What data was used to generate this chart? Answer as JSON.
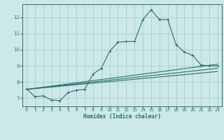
{
  "xlabel": "Humidex (Indice chaleur)",
  "background_color": "#cce8e8",
  "grid_color": "#aacece",
  "line_color": "#2a6e6e",
  "xlim": [
    -0.5,
    23.5
  ],
  "ylim": [
    6.5,
    12.8
  ],
  "yticks": [
    7,
    8,
    9,
    10,
    11,
    12
  ],
  "xticks": [
    0,
    1,
    2,
    3,
    4,
    5,
    6,
    7,
    8,
    9,
    10,
    11,
    12,
    13,
    14,
    15,
    16,
    17,
    18,
    19,
    20,
    21,
    22,
    23
  ],
  "series_main": {
    "x": [
      0,
      1,
      2,
      3,
      4,
      5,
      6,
      7,
      8,
      9,
      10,
      11,
      12,
      13,
      14,
      15,
      16,
      17,
      18,
      19,
      20,
      21,
      22,
      23
    ],
    "y": [
      7.6,
      7.1,
      7.15,
      6.9,
      6.85,
      7.35,
      7.5,
      7.55,
      8.5,
      8.85,
      9.9,
      10.45,
      10.5,
      10.5,
      11.85,
      12.45,
      11.85,
      11.85,
      10.3,
      9.85,
      9.65,
      9.05,
      9.0,
      9.0
    ]
  },
  "series_lines": [
    {
      "x": [
        0,
        23
      ],
      "y": [
        7.55,
        9.1
      ]
    },
    {
      "x": [
        0,
        23
      ],
      "y": [
        7.55,
        8.85
      ]
    },
    {
      "x": [
        0,
        23
      ],
      "y": [
        7.55,
        8.65
      ]
    }
  ],
  "xlabel_fontsize": 5.5,
  "tick_fontsize": 4.5,
  "line_width": 0.8,
  "marker_size": 2.5
}
